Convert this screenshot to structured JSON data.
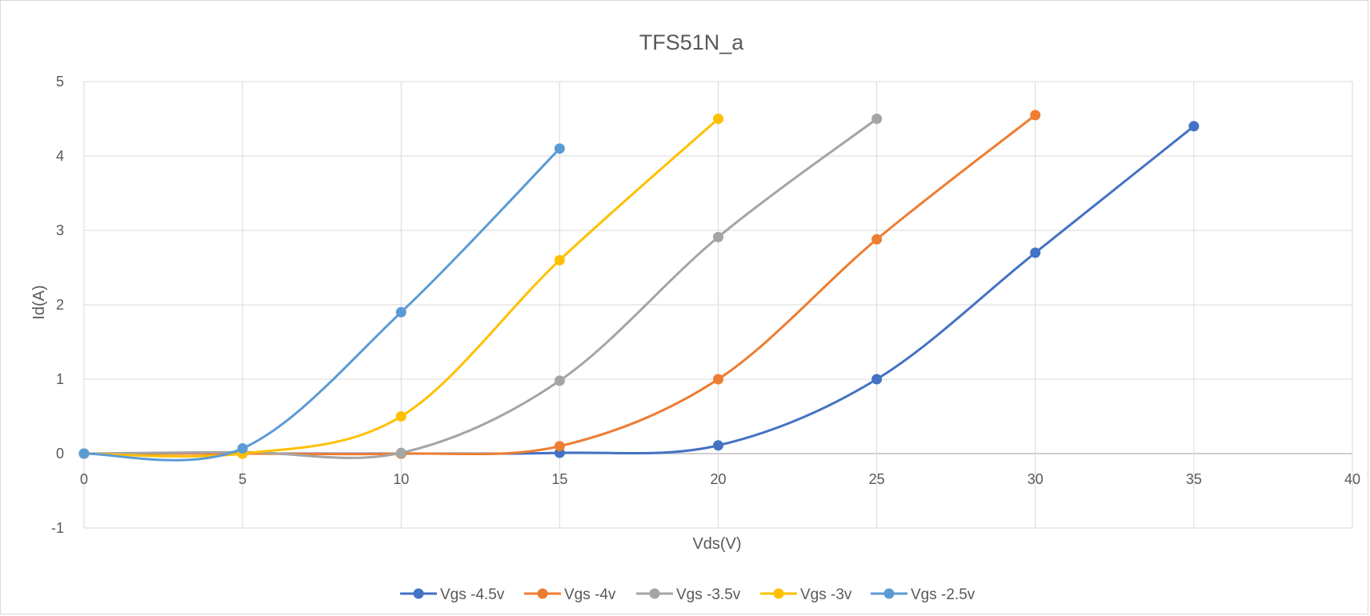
{
  "chart_data": {
    "type": "line",
    "title": "TFS51N_a",
    "xlabel": "Vds(V)",
    "ylabel": "Id(A)",
    "xlim": [
      0,
      40
    ],
    "ylim": [
      -1,
      5
    ],
    "x_ticks": [
      "0",
      "5",
      "10",
      "15",
      "20",
      "25",
      "30",
      "35",
      "40"
    ],
    "y_ticks": [
      "-1",
      "0",
      "1",
      "2",
      "3",
      "4",
      "5"
    ],
    "grid": true,
    "smooth": true,
    "legend_position": "bottom",
    "series": [
      {
        "name": "Vgs -4.5v",
        "color": "#4472C4",
        "x": [
          0,
          5,
          10,
          15,
          20,
          25,
          30,
          35
        ],
        "y": [
          0,
          0,
          0,
          0.01,
          0.11,
          1.0,
          2.7,
          4.4
        ]
      },
      {
        "name": "Vgs -4v",
        "color": "#ED7D31",
        "x": [
          0,
          5,
          10,
          15,
          20,
          25,
          30
        ],
        "y": [
          0,
          0,
          0,
          0.1,
          1.0,
          2.88,
          4.55
        ]
      },
      {
        "name": "Vgs -3.5v",
        "color": "#A5A5A5",
        "x": [
          0,
          5,
          10,
          15,
          20,
          25
        ],
        "y": [
          0,
          0.02,
          0.01,
          0.98,
          2.91,
          4.5
        ]
      },
      {
        "name": "Vgs -3v",
        "color": "#FFC000",
        "x": [
          0,
          5,
          10,
          15,
          20
        ],
        "y": [
          0,
          0,
          0.5,
          2.6,
          4.5
        ]
      },
      {
        "name": "Vgs -2.5v",
        "color": "#5B9BD5",
        "x": [
          0,
          5,
          10,
          15
        ],
        "y": [
          0,
          0.07,
          1.9,
          4.1
        ]
      }
    ]
  }
}
